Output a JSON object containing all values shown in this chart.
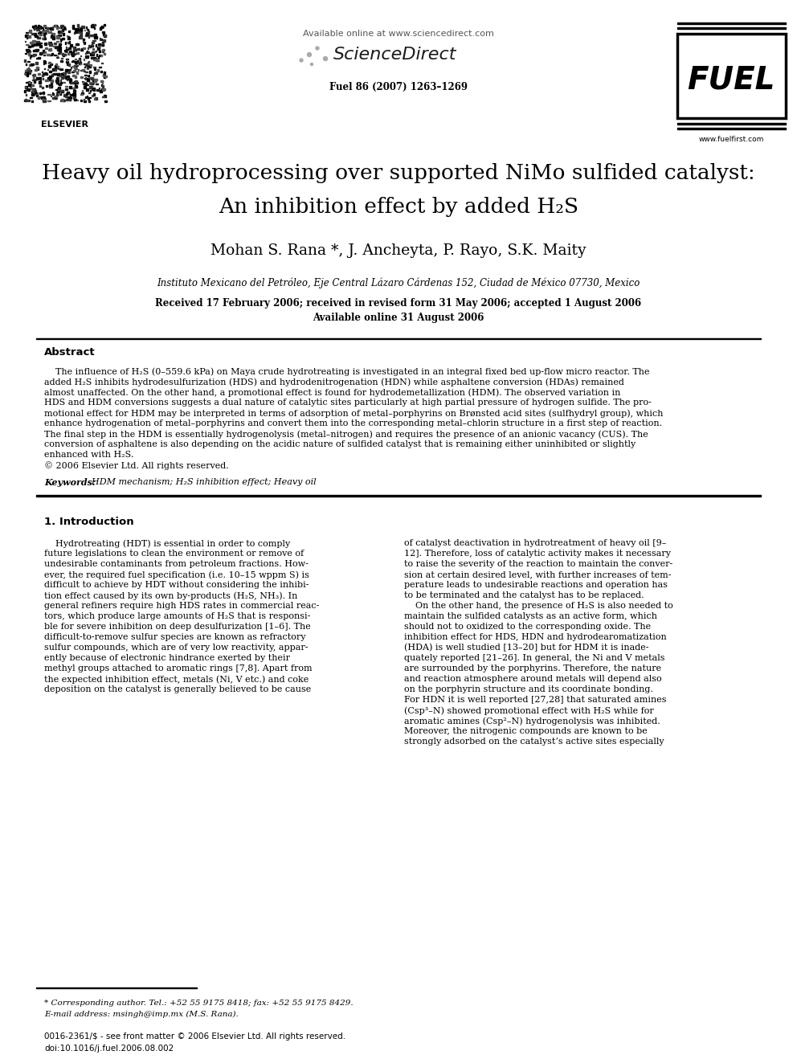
{
  "bg_color": "#ffffff",
  "available_online": "Available online at www.sciencedirect.com",
  "sciencedirect": "ScienceDirect",
  "journal_info": "Fuel 86 (2007) 1263–1269",
  "website": "www.fuelfirst.com",
  "title_line1": "Heavy oil hydroprocessing over supported NiMo sulfided catalyst:",
  "title_line2": "An inhibition effect by added H",
  "title_sub": "2",
  "title_end": "S",
  "authors": "Mohan S. Rana *, J. Ancheyta, P. Rayo, S.K. Maity",
  "affiliation": "Instituto Mexicano del Petróleo, Eje Central Lázaro Cárdenas 152, Ciudad de México 07730, Mexico",
  "received": "Received 17 February 2006; received in revised form 31 May 2006; accepted 1 August 2006",
  "available": "Available online 31 August 2006",
  "abstract_title": "Abstract",
  "abstract_lines": [
    "    The influence of H₂S (0–559.6 kPa) on Maya crude hydrotreating is investigated in an integral fixed bed up-flow micro reactor. The",
    "added H₂S inhibits hydrodesulfurization (HDS) and hydrodenitrogenation (HDN) while asphaltene conversion (HDAs) remained",
    "almost unaffected. On the other hand, a promotional effect is found for hydrodemetallization (HDM). The observed variation in",
    "HDS and HDM conversions suggests a dual nature of catalytic sites particularly at high partial pressure of hydrogen sulfide. The pro-",
    "motional effect for HDM may be interpreted in terms of adsorption of metal–porphyrins on Brønsted acid sites (sulfhydryl group), which",
    "enhance hydrogenation of metal–porphyrins and convert them into the corresponding metal–chlorin structure in a first step of reaction.",
    "The final step in the HDM is essentially hydrogenolysis (metal–nitrogen) and requires the presence of an anionic vacancy (CUS). The",
    "conversion of asphaltene is also depending on the acidic nature of sulfided catalyst that is remaining either uninhibited or slightly",
    "enhanced with H₂S.",
    "© 2006 Elsevier Ltd. All rights reserved."
  ],
  "keywords_label": "Keywords:",
  "keywords_text": "  HDM mechanism; H₂S inhibition effect; Heavy oil",
  "section1_title": "1. Introduction",
  "intro_left_lines": [
    "    Hydrotreating (HDT) is essential in order to comply",
    "future legislations to clean the environment or remove of",
    "undesirable contaminants from petroleum fractions. How-",
    "ever, the required fuel specification (i.e. 10–15 wppm S) is",
    "difficult to achieve by HDT without considering the inhibi-",
    "tion effect caused by its own by-products (H₂S, NH₃). In",
    "general refiners require high HDS rates in commercial reac-",
    "tors, which produce large amounts of H₂S that is responsi-",
    "ble for severe inhibition on deep desulfurization [1–6]. The",
    "difficult-to-remove sulfur species are known as refractory",
    "sulfur compounds, which are of very low reactivity, appar-",
    "ently because of electronic hindrance exerted by their",
    "methyl groups attached to aromatic rings [7,8]. Apart from",
    "the expected inhibition effect, metals (Ni, V etc.) and coke",
    "deposition on the catalyst is generally believed to be cause"
  ],
  "intro_right_lines": [
    "of catalyst deactivation in hydrotreatment of heavy oil [9–",
    "12]. Therefore, loss of catalytic activity makes it necessary",
    "to raise the severity of the reaction to maintain the conver-",
    "sion at certain desired level, with further increases of tem-",
    "perature leads to undesirable reactions and operation has",
    "to be terminated and the catalyst has to be replaced.",
    "    On the other hand, the presence of H₂S is also needed to",
    "maintain the sulfided catalysts as an active form, which",
    "should not to oxidized to the corresponding oxide. The",
    "inhibition effect for HDS, HDN and hydrodearomatization",
    "(HDA) is well studied [13–20] but for HDM it is inade-",
    "quately reported [21–26]. In general, the Ni and V metals",
    "are surrounded by the porphyrins. Therefore, the nature",
    "and reaction atmosphere around metals will depend also",
    "on the porphyrin structure and its coordinate bonding.",
    "For HDN it is well reported [27,28] that saturated amines",
    "(Csp³–N) showed promotional effect with H₂S while for",
    "aromatic amines (Csp²–N) hydrogenolysis was inhibited.",
    "Moreover, the nitrogenic compounds are known to be",
    "strongly adsorbed on the catalyst’s active sites especially"
  ],
  "footnote_star": "* Corresponding author. Tel.: +52 55 9175 8418; fax: +52 55 9175 8429.",
  "footnote_email": "E-mail address: msingh@imp.mx (M.S. Rana).",
  "bottom_line1": "0016-2361/$ - see front matter © 2006 Elsevier Ltd. All rights reserved.",
  "bottom_line2": "doi:10.1016/j.fuel.2006.08.002"
}
